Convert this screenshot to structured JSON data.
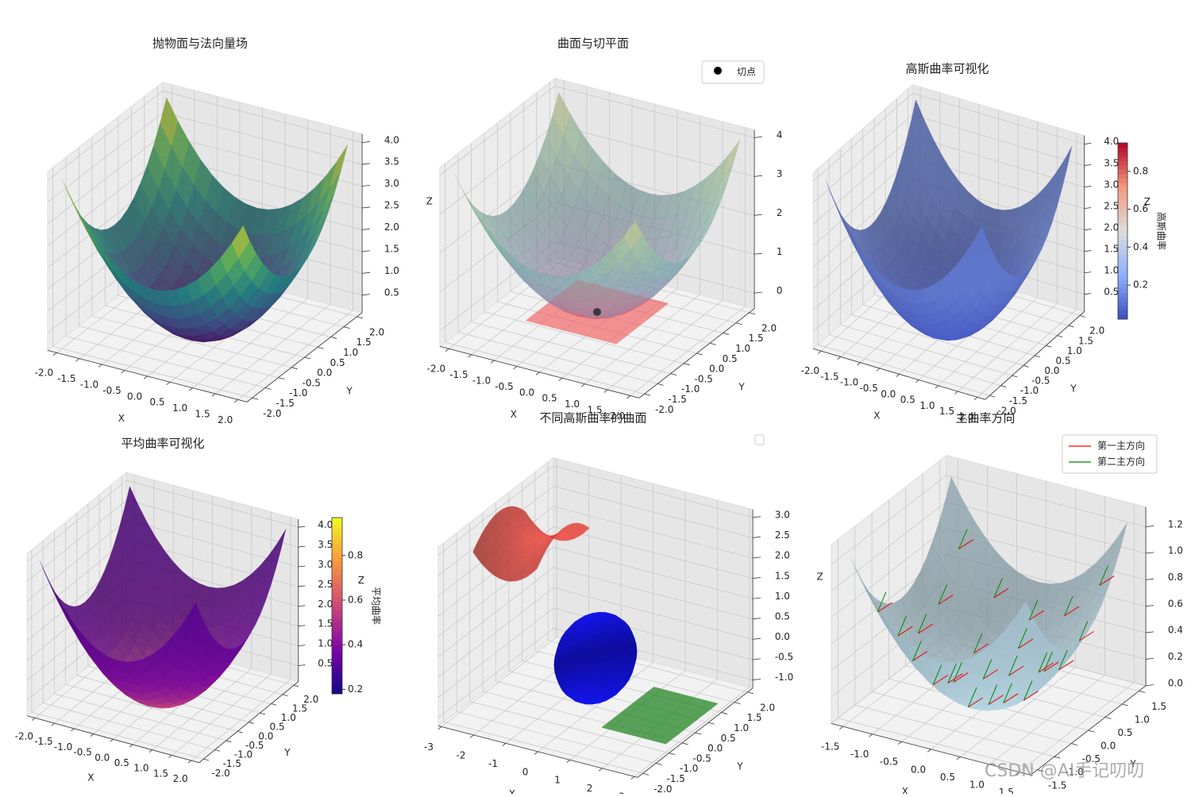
{
  "chart_data": [
    {
      "type": "surface",
      "title": "抛物面与法向量场",
      "xlabel": "X",
      "ylabel": "Y",
      "zlabel": "Z",
      "cmap": "viridis",
      "xlim": [
        -2.2,
        2.2
      ],
      "ylim": [
        -2.2,
        2.2
      ],
      "zlim": [
        0.1,
        4.2
      ],
      "xticks": [
        {
          "value": -2,
          "label": "-2.0"
        },
        -1.5,
        {
          "value": -1,
          "label": "-1.0"
        },
        -0.5,
        {
          "value": 0,
          "label": "0.0"
        },
        0.5,
        {
          "value": 1,
          "label": "1.0"
        },
        1.5,
        {
          "value": 2,
          "label": "2.0"
        }
      ],
      "yticks": [
        {
          "value": -2,
          "label": "-2.0"
        },
        -1.5,
        {
          "value": -1,
          "label": "-1.0"
        },
        -0.5,
        {
          "value": 0,
          "label": "0.0"
        },
        0.5,
        {
          "value": 1,
          "label": "1.0"
        },
        1.5,
        {
          "value": 2,
          "label": "2.0"
        }
      ],
      "zticks": [
        0.5,
        {
          "value": 1,
          "label": "1.0"
        },
        1.5,
        {
          "value": 2,
          "label": "2.0"
        },
        2.5,
        {
          "value": 3,
          "label": "3.0"
        },
        3.5,
        {
          "value": 4,
          "label": "4.0"
        }
      ]
    },
    {
      "type": "surface",
      "title": "曲面与切平面",
      "xlabel": "X",
      "ylabel": "Y",
      "zlabel": "Z",
      "cmap": "viridis",
      "xlim": [
        -2.2,
        2.2
      ],
      "ylim": [
        -2.2,
        2.2
      ],
      "zlim": [
        -0.4,
        4.2
      ],
      "xticks": [
        {
          "value": -2,
          "label": "-2.0"
        },
        -1.5,
        {
          "value": -1,
          "label": "-1.0"
        },
        -0.5,
        {
          "value": 0,
          "label": "0.0"
        },
        0.5,
        {
          "value": 1,
          "label": "1.0"
        },
        1.5,
        {
          "value": 2,
          "label": "2.0"
        }
      ],
      "yticks": [
        {
          "value": -2,
          "label": "-2.0"
        },
        -1.5,
        {
          "value": -1,
          "label": "-1.0"
        },
        -0.5,
        {
          "value": 0,
          "label": "0.0"
        },
        0.5,
        {
          "value": 1,
          "label": "1.0"
        },
        1.5,
        {
          "value": 2,
          "label": "2.0"
        }
      ],
      "zticks": [
        0,
        1,
        2,
        3,
        4
      ],
      "legend": [
        {
          "name": "切点",
          "color": "#000000"
        }
      ]
    },
    {
      "type": "surface",
      "title": "高斯曲率可视化",
      "xlabel": "X",
      "ylabel": "Y",
      "zlabel": "Z",
      "cmap": "coolwarm",
      "xlim": [
        -2.2,
        2.2
      ],
      "ylim": [
        -2.2,
        2.2
      ],
      "zlim": [
        0.1,
        4.2
      ],
      "xticks": [
        {
          "value": -2,
          "label": "-2.0"
        },
        -1.5,
        {
          "value": -1,
          "label": "-1.0"
        },
        -0.5,
        {
          "value": 0,
          "label": "0.0"
        },
        0.5,
        {
          "value": 1,
          "label": "1.0"
        },
        1.5,
        {
          "value": 2,
          "label": "2.0"
        }
      ],
      "yticks": [
        {
          "value": -2,
          "label": "-2.0"
        },
        -1.5,
        {
          "value": -1,
          "label": "-1.0"
        },
        -0.5,
        {
          "value": 0,
          "label": "0.0"
        },
        0.5,
        {
          "value": 1,
          "label": "1.0"
        },
        1.5,
        {
          "value": 2,
          "label": "2.0"
        }
      ],
      "zticks": [
        0.5,
        {
          "value": 1,
          "label": "1.0"
        },
        1.5,
        {
          "value": 2,
          "label": "2.0"
        },
        2.5,
        {
          "value": 3,
          "label": "3.0"
        },
        3.5,
        {
          "value": 4,
          "label": "4.0"
        }
      ],
      "colorbar": {
        "label": "高斯曲率",
        "clim": [
          0.02,
          0.95
        ],
        "ticks": [
          0.2,
          0.4,
          0.6,
          0.8
        ]
      }
    },
    {
      "type": "surface",
      "title": "平均曲率可视化",
      "xlabel": "X",
      "ylabel": "Y",
      "zlabel": "Z",
      "cmap": "plasma",
      "xlim": [
        -2.2,
        2.2
      ],
      "ylim": [
        -2.2,
        2.2
      ],
      "zlim": [
        0.1,
        4.2
      ],
      "xticks": [
        {
          "value": -2,
          "label": "-2.0"
        },
        -1.5,
        {
          "value": -1,
          "label": "-1.0"
        },
        -0.5,
        {
          "value": 0,
          "label": "0.0"
        },
        0.5,
        {
          "value": 1,
          "label": "1.0"
        },
        1.5,
        {
          "value": 2,
          "label": "2.0"
        }
      ],
      "yticks": [
        {
          "value": -2,
          "label": "-2.0"
        },
        -1.5,
        {
          "value": -1,
          "label": "-1.0"
        },
        -0.5,
        {
          "value": 0,
          "label": "0.0"
        },
        0.5,
        {
          "value": 1,
          "label": "1.0"
        },
        1.5,
        {
          "value": 2,
          "label": "2.0"
        }
      ],
      "zticks": [
        0.5,
        {
          "value": 1,
          "label": "1.0"
        },
        1.5,
        {
          "value": 2,
          "label": "2.0"
        },
        2.5,
        {
          "value": 3,
          "label": "3.0"
        },
        3.5,
        {
          "value": 4,
          "label": "4.0"
        }
      ],
      "colorbar": {
        "label": "平均曲率",
        "clim": [
          0.18,
          0.97
        ],
        "ticks": [
          0.2,
          0.4,
          0.6,
          0.8
        ]
      }
    },
    {
      "type": "surface",
      "title": "不同高斯曲率的曲面",
      "xlabel": "X",
      "ylabel": "Y",
      "zlabel": "Z",
      "xlim": [
        -3.1,
        3.1
      ],
      "ylim": [
        -2.2,
        2.2
      ],
      "zlim": [
        -1.2,
        3.2
      ],
      "xticks": [
        -3,
        -2,
        -1,
        0,
        1,
        2,
        3
      ],
      "yticks": [
        {
          "value": -2,
          "label": "-2.0"
        },
        -1.5,
        {
          "value": -1,
          "label": "-1.0"
        },
        -0.5,
        {
          "value": 0,
          "label": "0.0"
        },
        0.5,
        {
          "value": 1,
          "label": "1.0"
        },
        1.5,
        {
          "value": 2,
          "label": "2.0"
        }
      ],
      "zticks": [
        {
          "value": -1,
          "label": "-1.0"
        },
        -0.5,
        {
          "value": 0,
          "label": "0.0"
        },
        0.5,
        {
          "value": 1,
          "label": "1.0"
        },
        1.5,
        {
          "value": 2,
          "label": "2.0"
        },
        2.5,
        {
          "value": 3,
          "label": "3.0"
        }
      ]
    },
    {
      "type": "surface",
      "title": "主曲率方向",
      "xlabel": "X",
      "ylabel": "Y",
      "zlabel": "Z",
      "xlim": [
        -1.7,
        1.7
      ],
      "ylim": [
        -1.7,
        1.7
      ],
      "zlim": [
        0,
        1.35
      ],
      "xticks": [
        -1.5,
        {
          "value": -1,
          "label": "-1.0"
        },
        -0.5,
        {
          "value": 0,
          "label": "0.0"
        },
        0.5,
        {
          "value": 1,
          "label": "1.0"
        },
        1.5
      ],
      "yticks": [
        -1.5,
        {
          "value": -1,
          "label": "-1.0"
        },
        -0.5,
        {
          "value": 0,
          "label": "0.0"
        },
        0.5,
        {
          "value": 1,
          "label": "1.0"
        },
        1.5
      ],
      "zticks": [
        {
          "value": 0,
          "label": "0.0"
        },
        0.2,
        0.4,
        0.6,
        0.8,
        {
          "value": 1,
          "label": "1.0"
        },
        1.2
      ],
      "legend": [
        {
          "name": "第一主方向",
          "color": "#ff0000"
        },
        {
          "name": "第二主方向",
          "color": "#008000"
        }
      ]
    }
  ],
  "watermark": "CSDN @AI手记叨叨"
}
